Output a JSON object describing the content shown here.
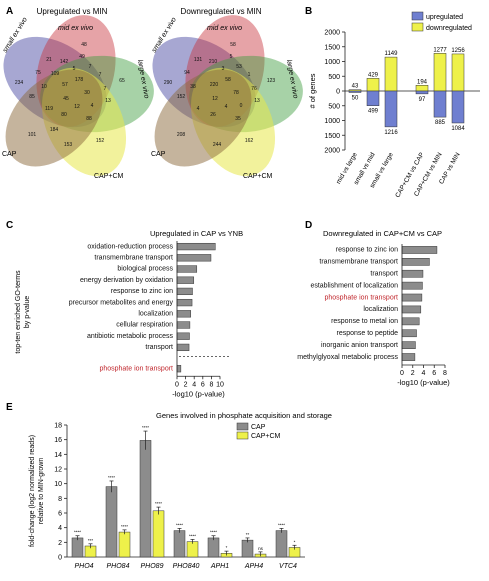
{
  "panels": {
    "A": {
      "letter": "A",
      "venns": [
        {
          "title": "Upregulated vs MIN",
          "set_labels": [
            "small ex vivo",
            "mid ex vivo",
            "large ex vivo",
            "CAP+CM",
            "CAP"
          ],
          "numbers": [
            "48",
            "234",
            "75",
            "21",
            "142",
            "5",
            "109",
            "49",
            "7",
            "7",
            "85",
            "10",
            "57",
            "178",
            "7",
            "119",
            "45",
            "30",
            "65",
            "12",
            "4",
            "13",
            "80",
            "88",
            "184",
            "101",
            "153",
            "152"
          ]
        },
        {
          "title": "Downregulated vs MIN",
          "set_labels": [
            "small ex vivo",
            "mid ex vivo",
            "large ex vivo",
            "CAP+CM",
            "CAP"
          ],
          "numbers": [
            "58",
            "290",
            "94",
            "131",
            "210",
            "3",
            "5",
            "53",
            "152",
            "38",
            "220",
            "58",
            "1",
            "76",
            "4",
            "12",
            "78",
            "4",
            "0",
            "123",
            "13",
            "26",
            "35",
            "208",
            "244",
            "162"
          ]
        }
      ]
    },
    "B": {
      "letter": "B",
      "legend": [
        "upregulated",
        "downregulated"
      ]
    },
    "C": {
      "letter": "C",
      "title": "Upregulated in CAP vs YNB",
      "side_label": [
        "top-ten enriched GO-terms",
        "by p-value"
      ]
    },
    "D": {
      "letter": "D",
      "title": "Downregulated in CAP+CM vs CAP"
    },
    "E": {
      "letter": "E",
      "title": "Genes involved in phosphate acquisition and storage",
      "stars": [
        [
          "****",
          "***"
        ],
        [
          "****",
          "****"
        ],
        [
          "****",
          "****"
        ],
        [
          "****",
          "****"
        ],
        [
          "****",
          "*"
        ],
        [
          "**",
          "ns"
        ],
        [
          "****",
          "*"
        ]
      ]
    }
  },
  "colors": {
    "upregulated": "#6f7fd0",
    "downregulated": "#eef14a",
    "bar_gray": "#8c8c8c",
    "highlight_red": "#c0262c",
    "venn": [
      "#3c3c9c",
      "#c8343c",
      "#3c9c3c",
      "#e8e84a",
      "#8c6a3c"
    ]
  },
  "chart_data": [
    {
      "type": "bar",
      "panel": "B",
      "categories": [
        "mid vs large",
        "small vs mid",
        "small vs large",
        "CAP+CM vs CAP",
        "CAP+CM vs MIN",
        "CAP vs MIN"
      ],
      "series": [
        {
          "name": "upregulated",
          "values": [
            43,
            429,
            1149,
            194,
            1277,
            1256
          ]
        },
        {
          "name": "downregulated",
          "values": [
            -50,
            -499,
            -1216,
            -97,
            -885,
            -1084
          ]
        }
      ],
      "ylabel": "# of genes",
      "yticks": [
        "2000",
        "1500",
        "1000",
        "500",
        "0",
        "500",
        "1000",
        "1500",
        "2000"
      ],
      "ylim": [
        -2000,
        2000
      ],
      "grid": false
    },
    {
      "type": "bar",
      "orientation": "horizontal",
      "panel": "C",
      "categories": [
        "oxidation-reduction process",
        "transmembrane transport",
        "biological process",
        "energy derivation by oxidation",
        "response to zinc ion",
        "precursor metabolites and energy",
        "localization",
        "cellular respiration",
        "antibiotic metabolic process",
        "transport",
        "phosphate ion transport"
      ],
      "values": [
        8.9,
        7.9,
        4.6,
        3.9,
        3.6,
        3.5,
        3.2,
        3.0,
        2.9,
        2.8,
        0.9
      ],
      "highlighted": [
        "phosphate ion transport"
      ],
      "xlabel": "-log10 (p-value)",
      "xticks": [
        "0",
        "2",
        "4",
        "6",
        "8",
        "10"
      ],
      "xlim": [
        0,
        10
      ]
    },
    {
      "type": "bar",
      "orientation": "horizontal",
      "panel": "D",
      "categories": [
        "response to zinc ion",
        "transmembrane transport",
        "transport",
        "establishment of localization",
        "phosphate ion transport",
        "localization",
        "response to metal ion",
        "response to peptide",
        "inorganic anion transport",
        "methylglyoxal metabolic process"
      ],
      "values": [
        6.5,
        5.1,
        3.9,
        3.8,
        3.7,
        3.5,
        3.2,
        2.7,
        2.5,
        2.4
      ],
      "highlighted": [
        "phosphate ion transport"
      ],
      "xlabel": "-log10 (p-value)",
      "xticks": [
        "0",
        "2",
        "4",
        "6",
        "8"
      ],
      "xlim": [
        0,
        8
      ]
    },
    {
      "type": "bar",
      "panel": "E",
      "categories": [
        "PHO4",
        "PHO84",
        "PHO89",
        "PHO840",
        "APH1",
        "APH4",
        "VTC4"
      ],
      "series": [
        {
          "name": "CAP",
          "values": [
            2.6,
            9.6,
            15.9,
            3.6,
            2.6,
            2.3,
            3.6
          ]
        },
        {
          "name": "CAP+CM",
          "values": [
            1.5,
            3.4,
            6.3,
            2.1,
            0.5,
            0.4,
            1.3
          ]
        }
      ],
      "ylabel": "fold-change (log2 normalized reads) relative to MIN-grown",
      "yticks": [
        "0",
        "2",
        "4",
        "6",
        "8",
        "10",
        "12",
        "14",
        "16",
        "18"
      ],
      "ylim": [
        0,
        18
      ]
    }
  ]
}
